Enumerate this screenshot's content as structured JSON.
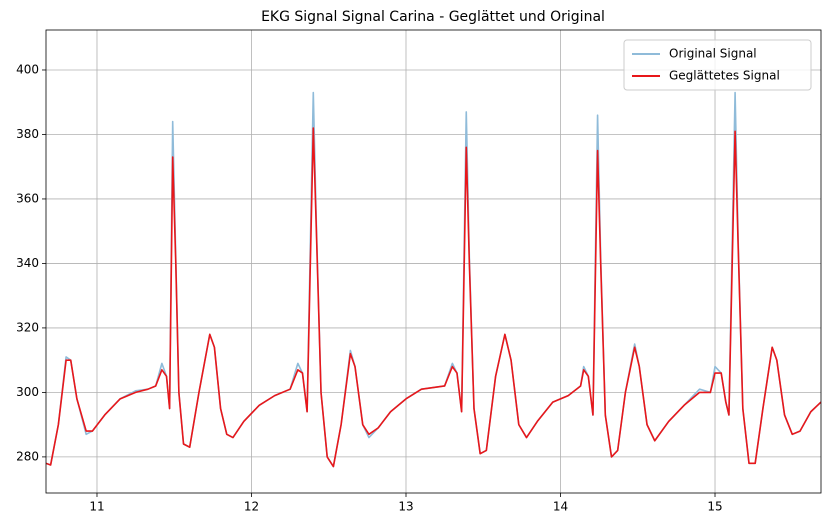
{
  "chart_data": {
    "type": "line",
    "title": "EKG Signal Signal Carina - Geglättet und Original",
    "x": [
      10.67,
      10.7,
      10.75,
      10.8,
      10.83,
      10.87,
      10.93,
      10.97,
      11.05,
      11.15,
      11.25,
      11.33,
      11.38,
      11.42,
      11.45,
      11.47,
      11.49,
      11.51,
      11.53,
      11.56,
      11.6,
      11.66,
      11.73,
      11.76,
      11.8,
      11.84,
      11.88,
      11.95,
      12.05,
      12.15,
      12.25,
      12.3,
      12.33,
      12.36,
      12.4,
      12.42,
      12.45,
      12.49,
      12.53,
      12.58,
      12.64,
      12.67,
      12.72,
      12.76,
      12.82,
      12.9,
      13.0,
      13.1,
      13.25,
      13.3,
      13.33,
      13.36,
      13.39,
      13.41,
      13.44,
      13.48,
      13.52,
      13.58,
      13.64,
      13.68,
      13.73,
      13.78,
      13.85,
      13.95,
      14.05,
      14.13,
      14.15,
      14.18,
      14.21,
      14.24,
      14.26,
      14.29,
      14.33,
      14.37,
      14.42,
      14.48,
      14.51,
      14.56,
      14.61,
      14.7,
      14.8,
      14.9,
      14.97,
      15.0,
      15.04,
      15.07,
      15.09,
      15.13,
      15.15,
      15.18,
      15.22,
      15.26,
      15.31,
      15.37,
      15.4,
      15.45,
      15.5,
      15.55,
      15.62,
      15.686
    ],
    "series": [
      {
        "name": "Original Signal",
        "color": "#8fbbd9",
        "values": [
          278,
          277.5,
          290,
          311,
          310,
          298,
          287,
          288,
          293,
          298,
          300.5,
          301,
          302,
          309,
          305,
          295,
          384,
          342,
          300,
          284,
          283,
          300,
          318,
          314,
          295,
          287,
          286,
          291,
          296,
          299,
          301,
          309,
          306,
          294,
          393,
          352,
          300,
          280,
          277,
          290,
          313,
          308,
          290,
          286,
          289,
          294,
          298,
          301,
          302,
          309,
          306,
          294,
          387,
          342,
          295,
          281,
          282,
          305,
          318,
          310,
          290,
          286,
          291,
          297,
          299,
          302,
          308,
          305,
          293,
          386,
          342,
          293,
          280,
          282,
          300,
          315,
          308,
          290,
          285,
          291,
          296,
          301,
          300,
          308,
          306,
          297,
          293,
          393,
          347,
          295,
          278,
          278,
          295,
          314,
          310,
          293,
          287,
          288,
          294,
          297
        ]
      },
      {
        "name": "Geglättetes Signal",
        "color": "#e8171a",
        "values": [
          278,
          277.5,
          290,
          310,
          310,
          298,
          288,
          288,
          293,
          298,
          300,
          301,
          302,
          307,
          305,
          295,
          373,
          340,
          300,
          284,
          283,
          300,
          318,
          314,
          295,
          287,
          286,
          291,
          296,
          299,
          301,
          307,
          306,
          294,
          382,
          350,
          300,
          280,
          277,
          290,
          312,
          308,
          290,
          287,
          289,
          294,
          298,
          301,
          302,
          308,
          306,
          294,
          376,
          340,
          295,
          281,
          282,
          305,
          318,
          310,
          290,
          286,
          291,
          297,
          299,
          302,
          307,
          305,
          293,
          375,
          340,
          293,
          280,
          282,
          300,
          314,
          308,
          290,
          285,
          291,
          296,
          300,
          300,
          306,
          306,
          297,
          293,
          381,
          345,
          295,
          278,
          278,
          295,
          314,
          310,
          293,
          287,
          288,
          294,
          297
        ]
      }
    ],
    "xlim": [
      10.67,
      15.686
    ],
    "ylim": [
      268.8,
      412.4
    ],
    "xticks": [
      11,
      12,
      13,
      14,
      15
    ],
    "yticks": [
      280,
      300,
      320,
      340,
      360,
      380,
      400
    ],
    "grid": true,
    "legend": "upper right"
  }
}
